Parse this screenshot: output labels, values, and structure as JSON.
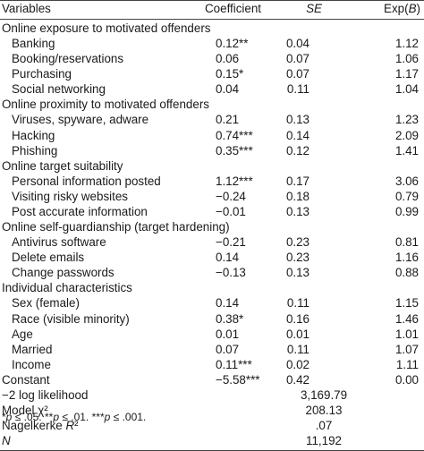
{
  "header": {
    "variables": "Variables",
    "coefficient": "Coefficient",
    "se": "SE",
    "exp": "Exp(B)"
  },
  "rows": [
    {
      "label": "Online exposure to motivated offenders",
      "type": "section"
    },
    {
      "label": "Banking",
      "coef": "0.12**",
      "se": "0.04",
      "exp": "1.12"
    },
    {
      "label": "Booking/reservations",
      "coef": "0.06",
      "se": "0.07",
      "exp": "1.06"
    },
    {
      "label": "Purchasing",
      "coef": "0.15*",
      "se": "0.07",
      "exp": "1.17"
    },
    {
      "label": "Social networking",
      "coef": "0.04",
      "se": "0.11",
      "exp": "1.04"
    },
    {
      "label": "Online proximity to motivated offenders",
      "type": "section"
    },
    {
      "label": "Viruses, spyware, adware",
      "coef": "0.21",
      "se": "0.13",
      "exp": "1.23"
    },
    {
      "label": "Hacking",
      "coef": "0.74***",
      "se": "0.14",
      "exp": "2.09"
    },
    {
      "label": "Phishing",
      "coef": "0.35***",
      "se": "0.12",
      "exp": "1.41"
    },
    {
      "label": "Online target suitability",
      "type": "section"
    },
    {
      "label": "Personal information posted",
      "coef": "1.12***",
      "se": "0.17",
      "exp": "3.06"
    },
    {
      "label": "Visiting risky websites",
      "coef": "−0.24",
      "se": "0.18",
      "exp": "0.79"
    },
    {
      "label": "Post accurate information",
      "coef": "−0.01",
      "se": "0.13",
      "exp": "0.99"
    },
    {
      "label": "Online self-guardianship (target hardening)",
      "type": "section"
    },
    {
      "label": "Antivirus software",
      "coef": "−0.21",
      "se": "0.23",
      "exp": "0.81"
    },
    {
      "label": "Delete emails",
      "coef": "0.14",
      "se": "0.23",
      "exp": "1.16"
    },
    {
      "label": "Change passwords",
      "coef": "−0.13",
      "se": "0.13",
      "exp": "0.88"
    },
    {
      "label": "Individual characteristics",
      "type": "section"
    },
    {
      "label": "Sex (female)",
      "coef": "0.14",
      "se": "0.11",
      "exp": "1.15"
    },
    {
      "label": "Race (visible minority)",
      "coef": "0.38*",
      "se": "0.16",
      "exp": "1.46"
    },
    {
      "label": "Age",
      "coef": "0.01",
      "se": "0.01",
      "exp": "1.01"
    },
    {
      "label": "Married",
      "coef": "0.07",
      "se": "0.11",
      "exp": "1.07"
    },
    {
      "label": "Income",
      "coef": "0.11***",
      "se": "0.02",
      "exp": "1.11"
    },
    {
      "label": "Constant",
      "coef": "−5.58***",
      "se": "0.42",
      "exp": "0.00",
      "type": "plain"
    }
  ],
  "fit": [
    {
      "label": "−2 log likelihood",
      "value": "3,169.79"
    },
    {
      "label": "Model χ²",
      "value": "208.13"
    },
    {
      "label": "Nagelkerke R²",
      "value": ".07",
      "italic_part": "R"
    },
    {
      "label": "N",
      "value": "11,192",
      "italic": true
    }
  ],
  "note": "*p ≤ .05. **p ≤ .01. ***p ≤ .001."
}
